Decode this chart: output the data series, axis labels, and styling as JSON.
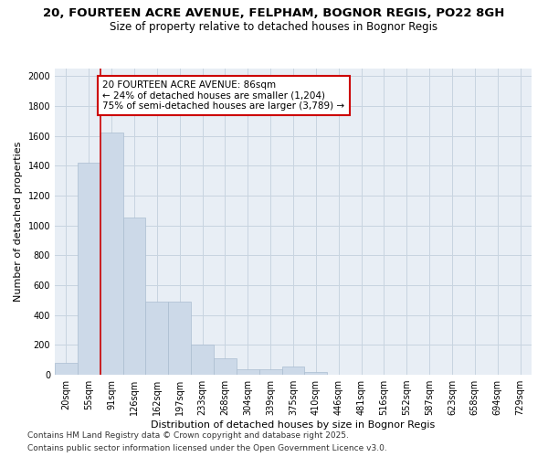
{
  "title1": "20, FOURTEEN ACRE AVENUE, FELPHAM, BOGNOR REGIS, PO22 8GH",
  "title2": "Size of property relative to detached houses in Bognor Regis",
  "xlabel": "Distribution of detached houses by size in Bognor Regis",
  "ylabel": "Number of detached properties",
  "categories": [
    "20sqm",
    "55sqm",
    "91sqm",
    "126sqm",
    "162sqm",
    "197sqm",
    "233sqm",
    "268sqm",
    "304sqm",
    "339sqm",
    "375sqm",
    "410sqm",
    "446sqm",
    "481sqm",
    "516sqm",
    "552sqm",
    "587sqm",
    "623sqm",
    "658sqm",
    "694sqm",
    "729sqm"
  ],
  "values": [
    80,
    1420,
    1620,
    1050,
    490,
    490,
    200,
    110,
    35,
    35,
    55,
    20,
    0,
    0,
    0,
    0,
    0,
    0,
    0,
    0,
    0
  ],
  "bar_color": "#ccd9e8",
  "bar_edge_color": "#aabdd0",
  "red_line_color": "#cc0000",
  "annotation_title": "20 FOURTEEN ACRE AVENUE: 86sqm",
  "annotation_line1": "← 24% of detached houses are smaller (1,204)",
  "annotation_line2": "75% of semi-detached houses are larger (3,789) →",
  "annotation_box_color": "#ffffff",
  "annotation_box_edge": "#cc0000",
  "grid_color": "#c8d4e0",
  "bg_color": "#e8eef5",
  "ylim": [
    0,
    2050
  ],
  "yticks": [
    0,
    200,
    400,
    600,
    800,
    1000,
    1200,
    1400,
    1600,
    1800,
    2000
  ],
  "footnote1": "Contains HM Land Registry data © Crown copyright and database right 2025.",
  "footnote2": "Contains public sector information licensed under the Open Government Licence v3.0.",
  "title_fontsize": 9.5,
  "subtitle_fontsize": 8.5,
  "axis_label_fontsize": 8,
  "tick_fontsize": 7,
  "annotation_fontsize": 7.5,
  "footnote_fontsize": 6.5
}
